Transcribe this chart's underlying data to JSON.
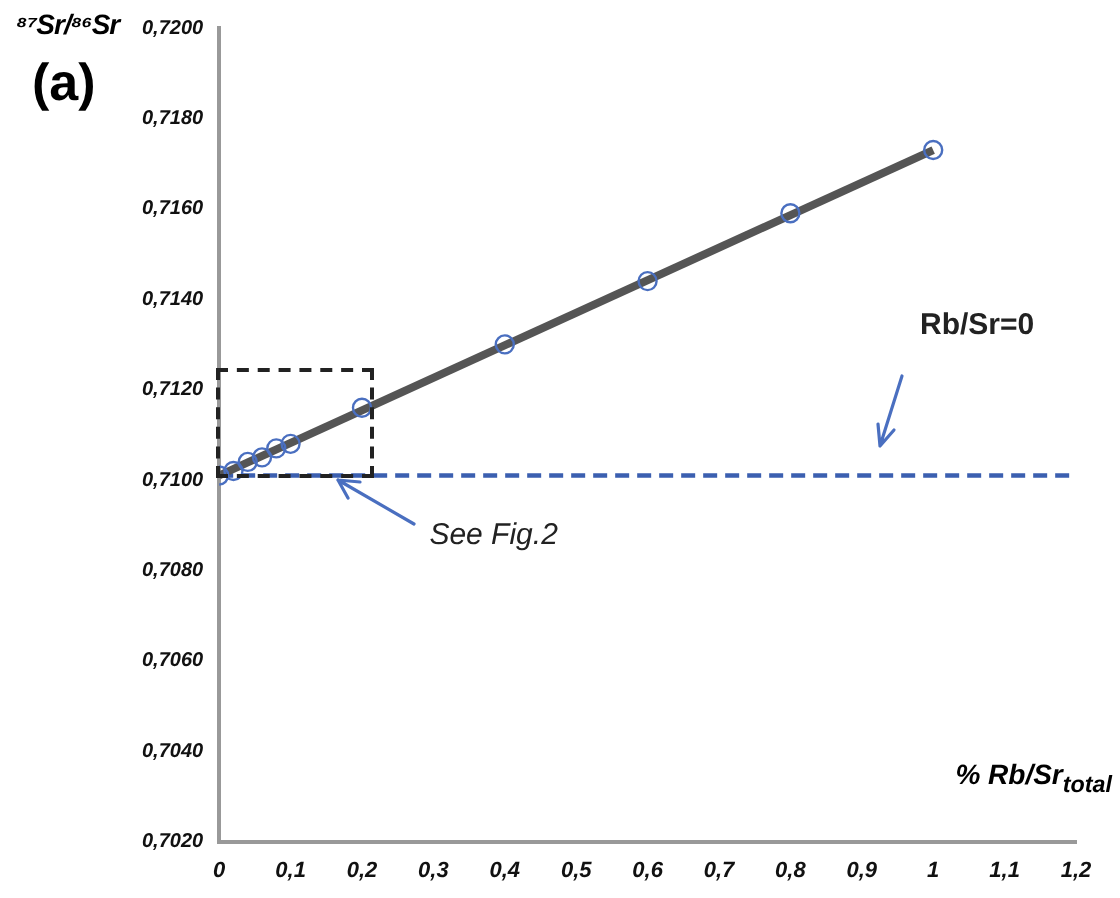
{
  "chart_data": {
    "type": "scatter",
    "title": "(a)",
    "ylabel": "⁸⁷Sr/⁸⁶Sr",
    "xlabel": "% Rb/Sr$_{total}$",
    "annotations": [
      {
        "text": "See Fig.2",
        "x": 0.16,
        "y": 0.7101
      },
      "Rb/Sr=0"
    ],
    "x": [
      0,
      0.02,
      0.04,
      0.06,
      0.08,
      0.1,
      0.2,
      0.4,
      0.6,
      0.8,
      1
    ],
    "series": [
      {
        "color": "#4a6fc0",
        "marker": "circle",
        "values": [
          0.7101,
          0.7102,
          0.7104,
          0.7105,
          0.7107,
          0.7108,
          0.7116,
          0.713,
          0.7144,
          0.7159,
          0.7173
        ]
      },
      {
        "type": "line",
        "color": "#555555",
        "marker": "none",
        "line_style": "solid",
        "x": [
          0,
          1
        ],
        "values": [
          0.7101,
          0.7173
        ]
      }
    ],
    "ref_lines": [
      {
        "axis": "y",
        "value": 0.7101,
        "color": "#3b5fb0",
        "line_style": "dashed"
      }
    ],
    "xlim": [
      0,
      1.2
    ],
    "xticks": [
      0,
      {
        "value": 0.1,
        "label": "0,1"
      },
      {
        "value": 0.2,
        "label": "0,2"
      },
      {
        "value": 0.3,
        "label": "0,3"
      },
      {
        "value": 0.4,
        "label": "0,4"
      },
      {
        "value": 0.5,
        "label": "0,5"
      },
      {
        "value": 0.6,
        "label": "0,6"
      },
      {
        "value": 0.7,
        "label": "0,7"
      },
      {
        "value": 0.8,
        "label": "0,8"
      },
      {
        "value": 0.9,
        "label": "0,9"
      },
      1,
      {
        "value": 1.1,
        "label": "1,1"
      },
      {
        "value": 1.2,
        "label": "1,2"
      }
    ],
    "ylim": [
      0.702,
      0.72
    ],
    "yticks": [
      {
        "value": 0.702,
        "label": "0,7020"
      },
      {
        "value": 0.704,
        "label": "0,7040"
      },
      {
        "value": 0.706,
        "label": "0,7060"
      },
      {
        "value": 0.708,
        "label": "0,7080"
      },
      {
        "value": 0.71,
        "label": "0,7100"
      },
      {
        "value": 0.712,
        "label": "0,7120"
      },
      {
        "value": 0.714,
        "label": "0,7140"
      },
      {
        "value": 0.716,
        "label": "0,7160"
      },
      {
        "value": 0.718,
        "label": "0,7180"
      },
      {
        "value": 0.72,
        "label": "0,7200"
      }
    ],
    "grid": false,
    "legend": false
  }
}
